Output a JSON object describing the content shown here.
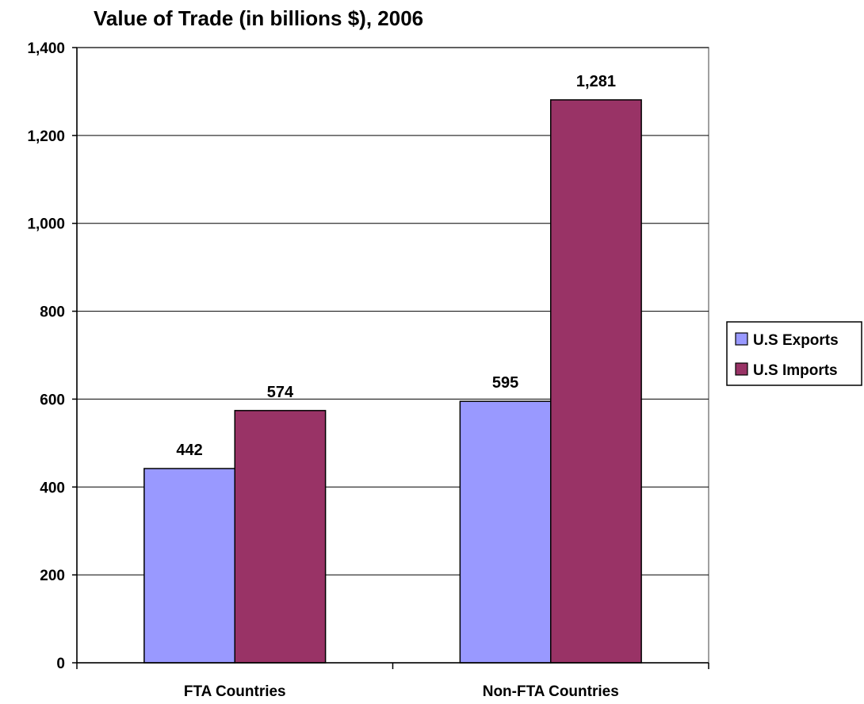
{
  "chart_data": {
    "type": "bar",
    "title": "Value of Trade (in billions $), 2006",
    "xlabel": "",
    "ylabel": "",
    "categories": [
      "FTA Countries",
      "Non-FTA Countries"
    ],
    "series": [
      {
        "name": "U.S Exports",
        "values": [
          442,
          595
        ],
        "labels": [
          "442",
          "595"
        ],
        "color": "#9999FF"
      },
      {
        "name": "U.S Imports",
        "values": [
          574,
          1281
        ],
        "labels": [
          "574",
          "1,281"
        ],
        "color": "#993366"
      }
    ],
    "ylim": [
      0,
      1400
    ],
    "yticks": [
      0,
      200,
      400,
      600,
      800,
      1000,
      1200,
      1400
    ],
    "ytick_labels": [
      "0",
      "200",
      "400",
      "600",
      "800",
      "1,000",
      "1,200",
      "1,400"
    ],
    "grid": true,
    "legend_position": "right"
  }
}
